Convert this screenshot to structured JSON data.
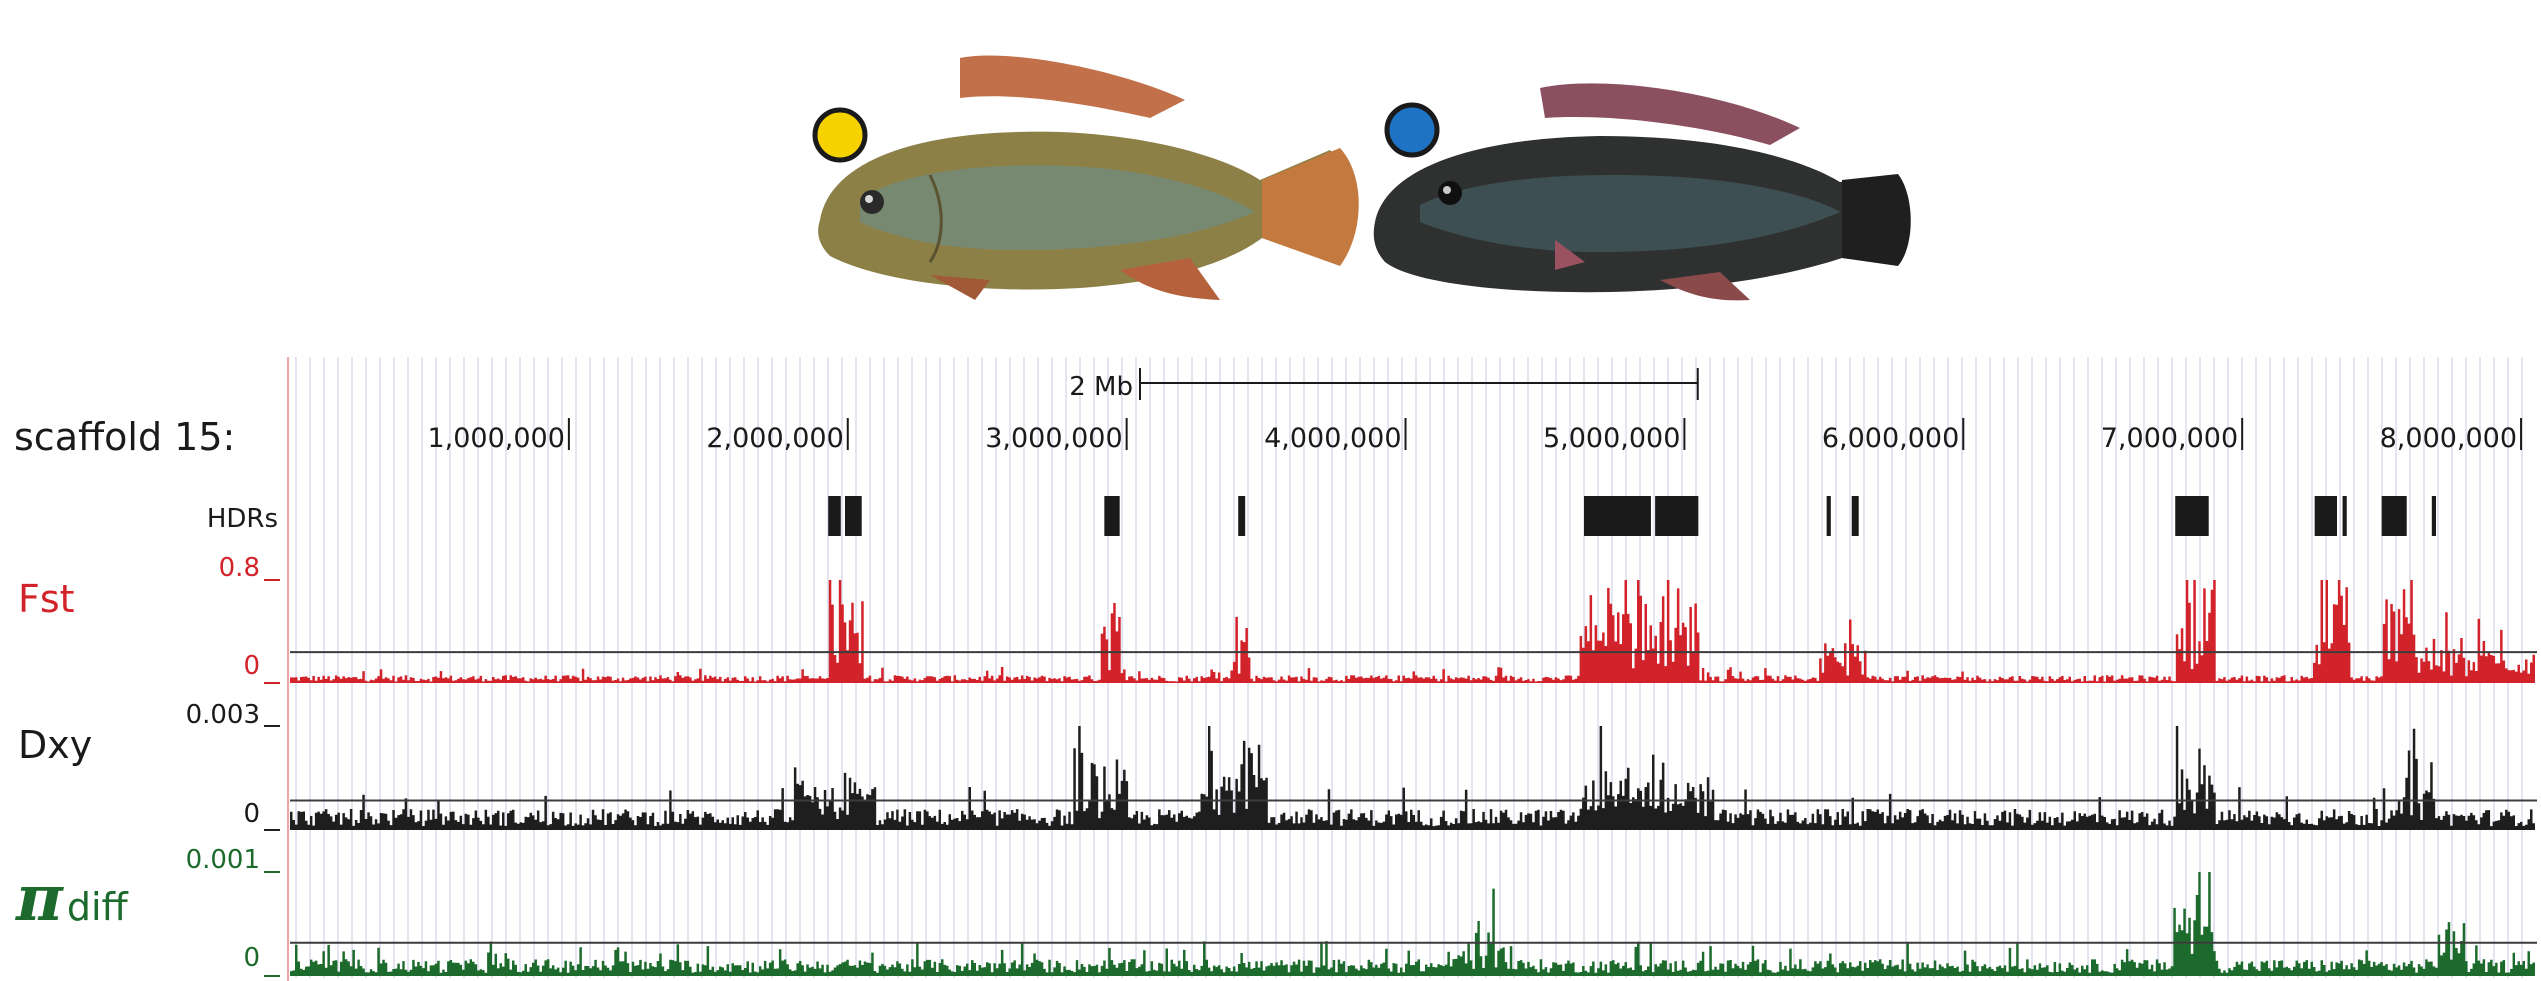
{
  "colors": {
    "fst": "#d3232a",
    "dxy": "#1e1e1e",
    "pi": "#1d6b2c",
    "hdr": "#1a1a1a",
    "grid": "#c9cbe0",
    "left_edge": "#f2a3a3",
    "yellow_dot": "#f5d200",
    "blue_dot": "#1f73c4"
  },
  "images": [
    {
      "icon": "yellow-fish-photo",
      "marker": "yellow-dot"
    },
    {
      "icon": "dark-fish-photo",
      "marker": "blue-dot"
    }
  ],
  "scale_bar": {
    "label": "2 Mb",
    "length_bp": 2000000
  },
  "chart_data": {
    "type": "area",
    "genome_browser": true,
    "scaffold_label": "scaffold 15:",
    "x_range": [
      1,
      8050000
    ],
    "x_ticks": [
      1000000,
      2000000,
      3000000,
      4000000,
      5000000,
      6000000,
      7000000,
      8000000
    ],
    "x_tick_labels": [
      "1,000,000",
      "2,000,000",
      "3,000,000",
      "4,000,000",
      "5,000,000",
      "6,000,000",
      "7,000,000",
      "8,000,000"
    ],
    "grid": true,
    "hdrs": {
      "label": "HDRs",
      "regions": [
        [
          1930000,
          1975000
        ],
        [
          1990000,
          2050000
        ],
        [
          2920000,
          2975000
        ],
        [
          3400000,
          3425000
        ],
        [
          4640000,
          4880000
        ],
        [
          4895000,
          5050000
        ],
        [
          5510000,
          5525000
        ],
        [
          5600000,
          5625000
        ],
        [
          6760000,
          6880000
        ],
        [
          7260000,
          7340000
        ],
        [
          7360000,
          7375000
        ],
        [
          7500000,
          7590000
        ],
        [
          7680000,
          7695000
        ]
      ]
    },
    "series": [
      {
        "name": "Fst",
        "max_label": "0.8",
        "min_label": "0",
        "ylim": [
          0,
          0.8
        ],
        "threshold": 0.24,
        "baseline": 0.045,
        "peaks": [
          {
            "start": 1930000,
            "end": 2050000,
            "value": 0.72
          },
          {
            "start": 2900000,
            "end": 2980000,
            "value": 0.55
          },
          {
            "start": 3370000,
            "end": 3440000,
            "value": 0.45
          },
          {
            "start": 4620000,
            "end": 5050000,
            "value": 0.62
          },
          {
            "start": 5480000,
            "end": 5650000,
            "value": 0.3
          },
          {
            "start": 6760000,
            "end": 6900000,
            "value": 0.72
          },
          {
            "start": 7250000,
            "end": 7380000,
            "value": 0.72
          },
          {
            "start": 7500000,
            "end": 7620000,
            "value": 0.68
          },
          {
            "start": 7620000,
            "end": 8050000,
            "value": 0.28
          }
        ]
      },
      {
        "name": "Dxy",
        "max_label": "0.003",
        "min_label": "0",
        "ylim": [
          0,
          0.003
        ],
        "threshold": 0.00085,
        "baseline": 0.00045,
        "peaks": [
          {
            "start": 1800000,
            "end": 2100000,
            "value": 0.0015
          },
          {
            "start": 2800000,
            "end": 3000000,
            "value": 0.002
          },
          {
            "start": 3250000,
            "end": 3500000,
            "value": 0.0024
          },
          {
            "start": 4620000,
            "end": 5100000,
            "value": 0.0017
          },
          {
            "start": 6750000,
            "end": 6900000,
            "value": 0.0019
          },
          {
            "start": 7550000,
            "end": 7700000,
            "value": 0.0018
          }
        ]
      },
      {
        "name": "π",
        "name_sub": "diff",
        "max_label": "0.001",
        "min_label": "0",
        "ylim": [
          0,
          0.001
        ],
        "threshold": 0.00032,
        "baseline": 0.00012,
        "peaks": [
          {
            "start": 700000,
            "end": 800000,
            "value": 0.0003
          },
          {
            "start": 6750000,
            "end": 6900000,
            "value": 0.00072
          },
          {
            "start": 7700000,
            "end": 7800000,
            "value": 0.00055
          },
          {
            "start": 4150000,
            "end": 4350000,
            "value": 0.00034
          }
        ]
      }
    ]
  }
}
